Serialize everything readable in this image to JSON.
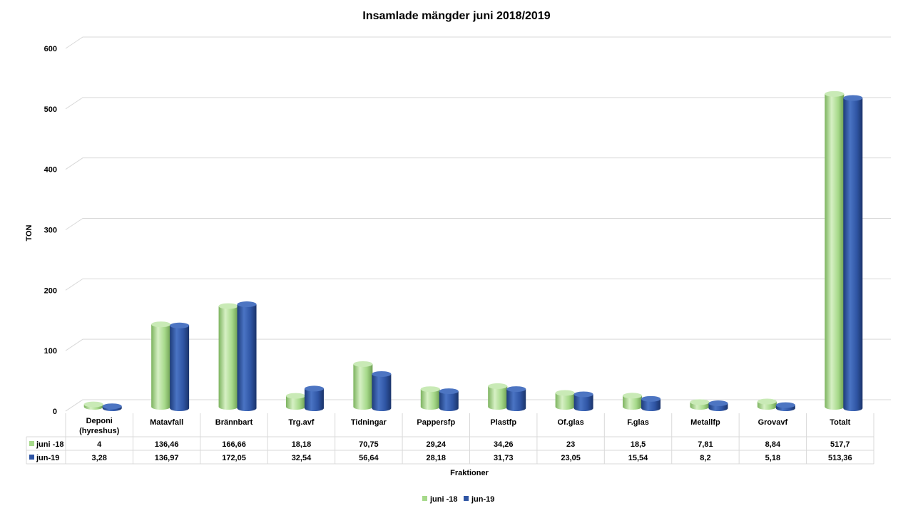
{
  "chart_data": {
    "type": "bar",
    "title": "Insamlade mängder juni 2018/2019",
    "xlabel": "Fraktioner",
    "ylabel": "TON",
    "ylim": [
      0,
      600
    ],
    "yticks": [
      "0",
      "100",
      "200",
      "300",
      "400",
      "500",
      "600"
    ],
    "grid": true,
    "legend_position": "bottom",
    "categories": [
      [
        "Deponi",
        "(hyreshus)"
      ],
      [
        "Matavfall"
      ],
      [
        "Brännbart"
      ],
      [
        "Trg.avf"
      ],
      [
        "Tidningar"
      ],
      [
        "Pappersfp"
      ],
      [
        "Plastfp"
      ],
      [
        "Of.glas"
      ],
      [
        "F.glas"
      ],
      [
        "Metallfp"
      ],
      [
        "Grovavf"
      ],
      [
        "Totalt"
      ]
    ],
    "series": [
      {
        "name": "juni -18",
        "color": "#a6d98a",
        "values": [
          4,
          136.46,
          166.66,
          18.18,
          70.75,
          29.24,
          34.26,
          23,
          18.5,
          7.81,
          8.84,
          517.7
        ],
        "labels": [
          "4",
          "136,46",
          "166,66",
          "18,18",
          "70,75",
          "29,24",
          "34,26",
          "23",
          "18,5",
          "7,81",
          "8,84",
          "517,7"
        ]
      },
      {
        "name": "jun-19",
        "color": "#2f55a4",
        "values": [
          3.28,
          136.97,
          172.05,
          32.54,
          56.64,
          28.18,
          31.73,
          23.05,
          15.54,
          8.2,
          5.18,
          513.36
        ],
        "labels": [
          "3,28",
          "136,97",
          "172,05",
          "32,54",
          "56,64",
          "28,18",
          "31,73",
          "23,05",
          "15,54",
          "8,2",
          "5,18",
          "513,36"
        ]
      }
    ]
  }
}
